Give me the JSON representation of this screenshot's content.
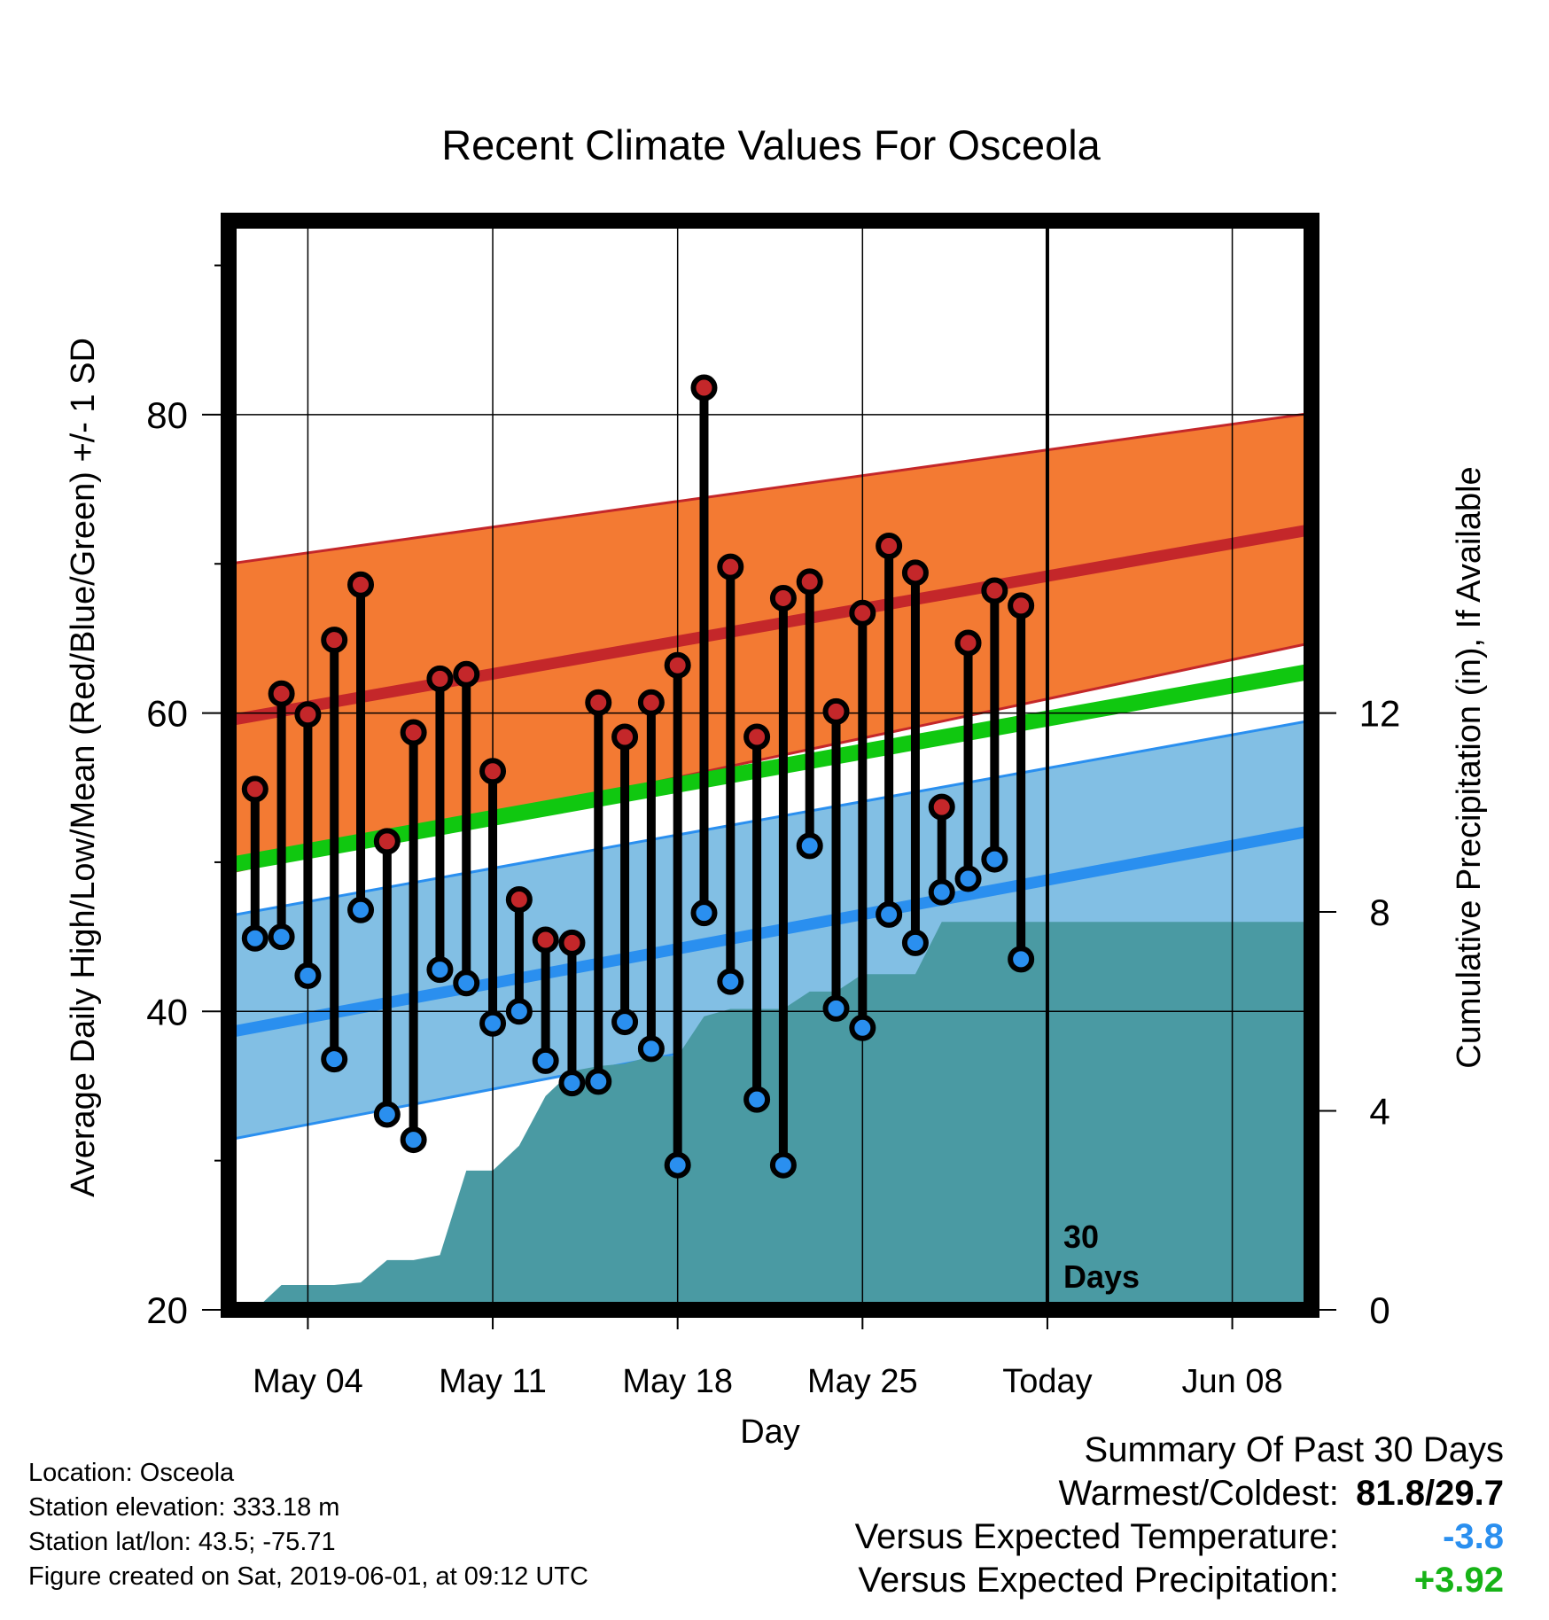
{
  "chart_data": {
    "type": "line",
    "title": "Recent Climate Values For Osceola",
    "xlabel": "Day",
    "ylabel": "Average Daily High/Low/Mean (Red/Blue/Green) +/- 1 SD",
    "y2label": "Cumulative Precipitation (in), If Available",
    "ylim": [
      20,
      93
    ],
    "y2lim": [
      0,
      21.9
    ],
    "x_tick_labels": [
      "May 04",
      "May 11",
      "May 18",
      "May 25",
      "Today",
      "Jun 08"
    ],
    "x_range": [
      "2019-05-01",
      "2019-06-11"
    ],
    "y_ticks": [
      20,
      40,
      60,
      80
    ],
    "y2_ticks": [
      0,
      4,
      8,
      12
    ],
    "today": "2019-06-01",
    "today_label": [
      "30",
      "Days"
    ],
    "grid": true,
    "normals": {
      "start": "2019-05-01",
      "end": "2019-06-11",
      "high_mean": [
        59.5,
        72.3
      ],
      "high_plus_sd": [
        70.0,
        80.1
      ],
      "high_minus_sd": [
        49.3,
        64.7
      ],
      "avg_mean": [
        49.8,
        62.8
      ],
      "low_mean": [
        38.6,
        52.1
      ],
      "low_plus_sd": [
        46.4,
        59.5
      ],
      "low_minus_sd": [
        31.4,
        45.3
      ]
    },
    "series": [
      {
        "name": "High",
        "color": "#c4272a",
        "x": [
          "2019-05-02",
          "2019-05-03",
          "2019-05-04",
          "2019-05-05",
          "2019-05-06",
          "2019-05-07",
          "2019-05-08",
          "2019-05-09",
          "2019-05-10",
          "2019-05-11",
          "2019-05-12",
          "2019-05-13",
          "2019-05-14",
          "2019-05-15",
          "2019-05-16",
          "2019-05-17",
          "2019-05-18",
          "2019-05-19",
          "2019-05-20",
          "2019-05-21",
          "2019-05-22",
          "2019-05-23",
          "2019-05-24",
          "2019-05-25",
          "2019-05-26",
          "2019-05-27",
          "2019-05-28",
          "2019-05-29",
          "2019-05-30",
          "2019-05-31"
        ],
        "values": [
          54.9,
          61.3,
          59.9,
          64.9,
          68.6,
          51.4,
          58.7,
          62.3,
          62.6,
          56.1,
          47.5,
          44.8,
          44.6,
          60.7,
          58.4,
          60.7,
          63.2,
          81.8,
          69.8,
          58.4,
          67.7,
          68.8,
          60.1,
          66.7,
          71.2,
          69.4,
          53.7,
          64.7,
          68.2,
          67.2
        ]
      },
      {
        "name": "Low",
        "color": "#2a8fef",
        "x": [
          "2019-05-02",
          "2019-05-03",
          "2019-05-04",
          "2019-05-05",
          "2019-05-06",
          "2019-05-07",
          "2019-05-08",
          "2019-05-09",
          "2019-05-10",
          "2019-05-11",
          "2019-05-12",
          "2019-05-13",
          "2019-05-14",
          "2019-05-15",
          "2019-05-16",
          "2019-05-17",
          "2019-05-18",
          "2019-05-19",
          "2019-05-20",
          "2019-05-21",
          "2019-05-22",
          "2019-05-23",
          "2019-05-24",
          "2019-05-25",
          "2019-05-26",
          "2019-05-27",
          "2019-05-28",
          "2019-05-29",
          "2019-05-30",
          "2019-05-31"
        ],
        "values": [
          44.9,
          45.0,
          42.4,
          36.8,
          46.8,
          33.1,
          31.4,
          42.8,
          41.9,
          39.2,
          40.0,
          36.7,
          35.2,
          35.3,
          39.3,
          37.5,
          29.7,
          46.6,
          42.0,
          34.1,
          29.7,
          51.1,
          40.2,
          38.9,
          46.5,
          44.6,
          48.0,
          48.9,
          50.2,
          43.5
        ]
      },
      {
        "name": "Cumulative Precipitation",
        "color": "#4a9aa3",
        "x": [
          "2019-05-01",
          "2019-05-02",
          "2019-05-03",
          "2019-05-04",
          "2019-05-05",
          "2019-05-06",
          "2019-05-07",
          "2019-05-08",
          "2019-05-09",
          "2019-05-10",
          "2019-05-11",
          "2019-05-12",
          "2019-05-13",
          "2019-05-14",
          "2019-05-15",
          "2019-05-16",
          "2019-05-17",
          "2019-05-18",
          "2019-05-19",
          "2019-05-20",
          "2019-05-21",
          "2019-05-22",
          "2019-05-23",
          "2019-05-24",
          "2019-05-25",
          "2019-05-26",
          "2019-05-27",
          "2019-05-28",
          "2019-05-29",
          "2019-05-30",
          "2019-05-31",
          "2019-06-01",
          "2019-06-11"
        ],
        "values": [
          0.0,
          0.0,
          0.5,
          0.5,
          0.5,
          0.55,
          1.0,
          1.0,
          1.1,
          2.8,
          2.8,
          3.3,
          4.3,
          4.8,
          4.9,
          4.95,
          5.1,
          5.1,
          5.9,
          6.05,
          6.05,
          6.05,
          6.4,
          6.4,
          6.75,
          6.75,
          6.75,
          7.8,
          7.8,
          7.8,
          7.8,
          7.8,
          7.8
        ]
      }
    ]
  },
  "footer": {
    "location": "Location: Osceola",
    "elevation": "Station elevation: 333.18 m",
    "latlon": "Station lat/lon: 43.5; -75.71",
    "created": "Figure created on Sat, 2019-06-01, at 09:12 UTC"
  },
  "summary": {
    "title": "Summary Of Past 30 Days",
    "warmest_label": "Warmest/Coldest:",
    "warmest_value": "81.8/29.7",
    "temp_label": "Versus Expected Temperature:",
    "temp_value": "-3.8",
    "precip_label": "Versus Expected Precipitation:",
    "precip_value": "+3.92",
    "colors": {
      "temp": "#2a8fef",
      "precip": "#17b317"
    }
  }
}
